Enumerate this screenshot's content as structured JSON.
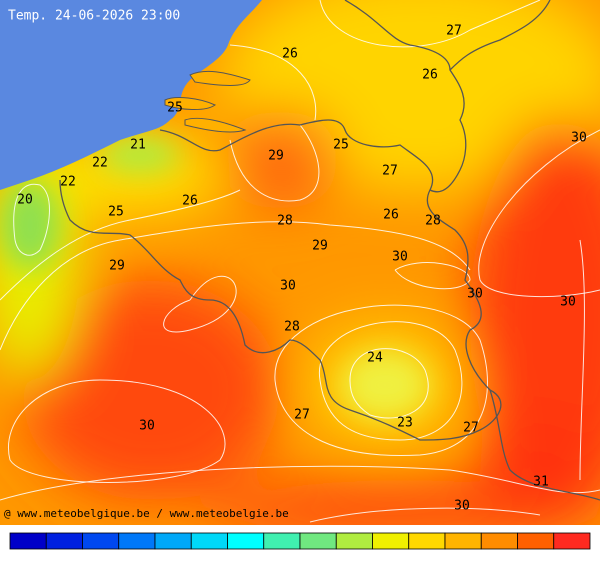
{
  "header": {
    "title": "Temp. 24-06-2026 23:00"
  },
  "contour_labels": [
    27,
    26,
    26,
    25,
    30,
    21,
    29,
    25,
    22,
    27,
    22,
    20,
    26,
    25,
    26,
    28,
    28,
    29,
    30,
    29,
    30,
    30,
    30,
    28,
    24,
    27,
    23,
    30,
    27,
    31,
    30
  ],
  "footer": {
    "credit": "@ www.meteobelgique.be / www.meteobelgie.be"
  }
}
